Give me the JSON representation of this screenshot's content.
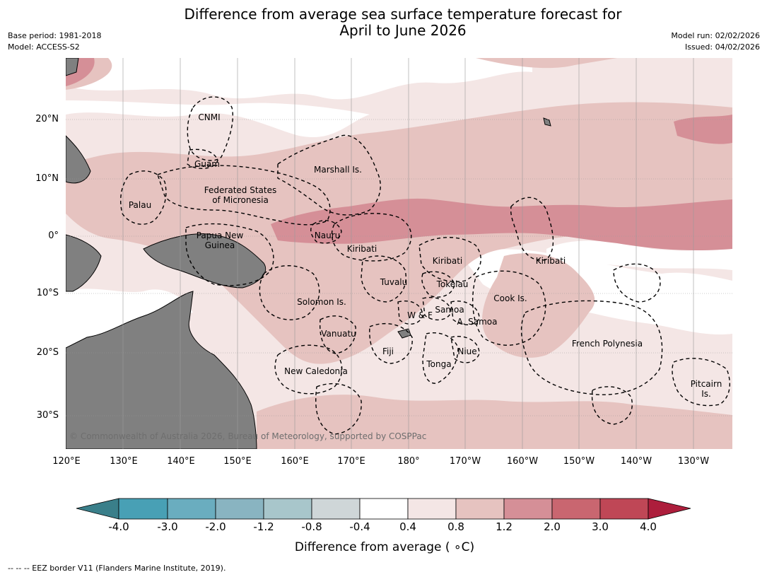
{
  "title": {
    "line1": "Difference from average sea surface temperature forecast for",
    "line2": "April to June 2026"
  },
  "header": {
    "base_period": "Base period: 1981-2018",
    "model": "Model: ACCESS-S2",
    "model_run": "Model run: 02/02/2026",
    "issued": "Issued: 04/02/2026"
  },
  "map": {
    "lat_ticks": [
      "20°N",
      "10°N",
      "0°",
      "10°S",
      "20°S",
      "30°S"
    ],
    "lon_ticks": [
      "120°E",
      "130°E",
      "140°E",
      "150°E",
      "160°E",
      "170°E",
      "180°",
      "170°W",
      "160°W",
      "150°W",
      "140°W",
      "130°W"
    ],
    "regions": {
      "cnmi": "CNMI",
      "guam": "Guam",
      "marshall": "Marshall Is.",
      "fsm_1": "Federated States",
      "fsm_2": "of Micronesia",
      "palau": "Palau",
      "png_1": "Papua New",
      "png_2": "Guinea",
      "nauru": "Nauru",
      "kiribati_w": "Kiribati",
      "kiribati_c": "Kiribati",
      "kiribati_e": "Kiribati",
      "tuvalu": "Tuvalu",
      "tokelau": "Tokelau",
      "cook": "Cook Is.",
      "solomon": "Solomon Is.",
      "wf": "W & F",
      "samoa": "Samoa",
      "asamoa": "A. Samoa",
      "vanuatu": "Vanuatu",
      "fiji": "Fiji",
      "niue": "Niue",
      "tonga": "Tonga",
      "newcal": "New Caledonia",
      "frpoly": "French Polynesia",
      "pitcairn_1": "Pitcairn",
      "pitcairn_2": "Is."
    },
    "copyright": "© Commonwealth of Australia 2026, Bureau of Meteorology, supported by COSPPac"
  },
  "colorbar": {
    "labels": [
      "-4.0",
      "-3.0",
      "-2.0",
      "-1.2",
      "-0.8",
      "-0.4",
      "0.4",
      "0.8",
      "1.2",
      "2.0",
      "3.0",
      "4.0"
    ],
    "colors": [
      "#3a7f8a",
      "#48a0b5",
      "#6aadbf",
      "#89b4c1",
      "#a8c6cb",
      "#cfd6d8",
      "#ffffff",
      "#f4e6e5",
      "#e6c3c0",
      "#d58f97",
      "#c96670",
      "#bf4756",
      "#ad1e3c"
    ],
    "title": "Difference from average ( ∘C)"
  },
  "footer": "--  --  -- EEZ border V11 (Flanders Marine Institute, 2019)."
}
